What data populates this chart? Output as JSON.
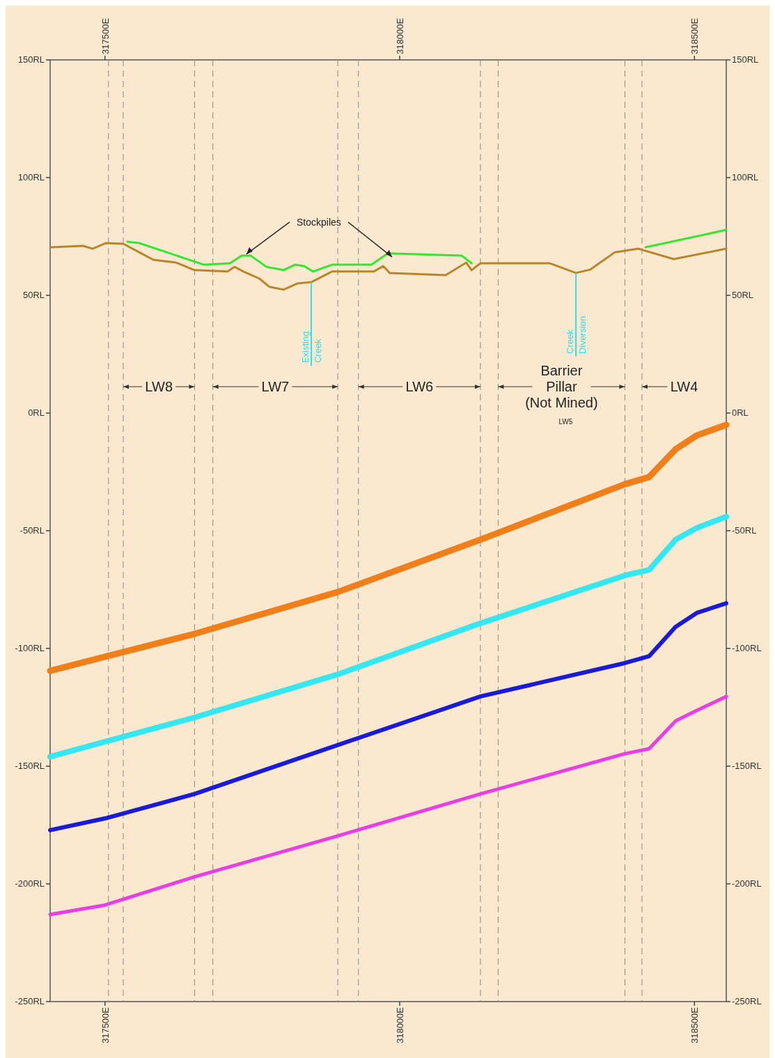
{
  "chart_data": {
    "type": "line",
    "xlim": [
      317407,
      318554
    ],
    "xticks": [
      {
        "value": 317500,
        "label": "317500E"
      },
      {
        "value": 318000,
        "label": "318000E"
      },
      {
        "value": 318500,
        "label": "318500E"
      }
    ],
    "x2lim": [
      317407,
      318554
    ],
    "x2ticks": [
      {
        "value": 317500,
        "label": "317500E"
      },
      {
        "value": 318000,
        "label": "318000E"
      },
      {
        "value": 318500,
        "label": "318500E"
      }
    ],
    "ylim": [
      -250,
      150
    ],
    "yticks": [
      {
        "value": 150,
        "label": "150RL"
      },
      {
        "value": 100,
        "label": "100RL"
      },
      {
        "value": 50,
        "label": "50RL"
      },
      {
        "value": 0,
        "label": "0RL"
      },
      {
        "value": -50,
        "label": "-50RL"
      },
      {
        "value": -100,
        "label": "-100RL"
      },
      {
        "value": -150,
        "label": "-150RL"
      },
      {
        "value": -200,
        "label": "-200RL"
      },
      {
        "value": -250,
        "label": "-250RL"
      }
    ],
    "y2lim": [
      -250,
      150
    ],
    "y2ticks": [
      {
        "value": 150,
        "label": "150RL"
      },
      {
        "value": 100,
        "label": "100RL"
      },
      {
        "value": 50,
        "label": "50RL"
      },
      {
        "value": 0,
        "label": "0RL"
      },
      {
        "value": -50,
        "label": "-50RL"
      },
      {
        "value": -100,
        "label": "-100RL"
      },
      {
        "value": -150,
        "label": "-150RL"
      },
      {
        "value": -200,
        "label": "-200RL"
      },
      {
        "value": -250,
        "label": "-250RL"
      }
    ],
    "series": [
      {
        "color": "#33e62e",
        "x": [
          317538,
          317558,
          317668,
          317712,
          317732,
          317747,
          317774,
          317803,
          317822,
          317838,
          317853,
          317885,
          317952,
          317980,
          318105,
          318122
        ],
        "values": [
          72.8,
          72.2,
          63.0,
          63.6,
          66.9,
          66.9,
          62.1,
          60.7,
          63.0,
          62.4,
          60.1,
          63.0,
          63.0,
          67.8,
          66.9,
          63.6
        ]
      },
      {
        "color": "#33e62e",
        "x": [
          318417,
          318554
        ],
        "values": [
          70.4,
          77.8
        ]
      },
      {
        "color": "#b8862a",
        "x": [
          317408,
          317463,
          317479,
          317502,
          317531,
          317558,
          317582,
          317621,
          317652,
          317708,
          317720,
          317735,
          317762,
          317779,
          317803,
          317826,
          317850,
          317885,
          317956,
          317972,
          317983,
          318078,
          318113,
          318122,
          318137,
          318255,
          318299,
          318323,
          318365,
          318405,
          318417,
          318465,
          318554
        ],
        "values": [
          70.4,
          71.0,
          69.8,
          72.2,
          71.9,
          68.3,
          65.1,
          63.9,
          60.7,
          60.1,
          62.1,
          60.1,
          57.1,
          53.6,
          52.4,
          55.0,
          55.6,
          60.1,
          60.1,
          62.4,
          59.5,
          58.6,
          63.9,
          60.7,
          63.6,
          63.6,
          59.5,
          60.9,
          68.3,
          69.8,
          68.9,
          65.4,
          69.8
        ]
      },
      {
        "color": "#f07f1a",
        "x": [
          317407,
          317500,
          317652,
          317895,
          318137,
          318382,
          318423,
          318468,
          318504,
          318554
        ],
        "values": [
          -109.5,
          -103.5,
          -93.8,
          -76,
          -53.8,
          -30.2,
          -27.2,
          -15.4,
          -9.5,
          -5
        ]
      },
      {
        "color": "#33e8f0",
        "x": [
          317407,
          317500,
          317652,
          317895,
          318137,
          318382,
          318423,
          318468,
          318504,
          318554
        ],
        "values": [
          -146,
          -139.6,
          -129.3,
          -111,
          -89.3,
          -69,
          -66.6,
          -53.8,
          -48.8,
          -44
        ]
      },
      {
        "color": "#1a1adb",
        "x": [
          317407,
          317500,
          317652,
          317895,
          318137,
          318382,
          318423,
          318468,
          318504,
          318554
        ],
        "values": [
          -177.2,
          -172.2,
          -161.8,
          -141,
          -120.4,
          -106.2,
          -103.3,
          -90.8,
          -84.9,
          -80.8
        ]
      },
      {
        "color": "#e83ee8",
        "x": [
          317407,
          317500,
          317652,
          317895,
          318137,
          318382,
          318423,
          318468,
          318504,
          318554
        ],
        "values": [
          -213,
          -209,
          -197,
          -179.6,
          -161.8,
          -144.7,
          -142.6,
          -130.8,
          -126.3,
          -120.4
        ]
      }
    ],
    "ref_lines": [
      {
        "axis": "x",
        "value": 317506,
        "color": "#8a8a8a",
        "line_style": "dashed"
      },
      {
        "axis": "x",
        "value": 317531,
        "color": "#8a8a8a",
        "line_style": "dashed"
      },
      {
        "axis": "x",
        "value": 317652,
        "color": "#8a8a8a",
        "line_style": "dashed"
      },
      {
        "axis": "x",
        "value": 317683,
        "color": "#8a8a8a",
        "line_style": "dashed"
      },
      {
        "axis": "x",
        "value": 317895,
        "color": "#8a8a8a",
        "line_style": "dashed"
      },
      {
        "axis": "x",
        "value": 317930,
        "color": "#8a8a8a",
        "line_style": "dashed"
      },
      {
        "axis": "x",
        "value": 318137,
        "color": "#8a8a8a",
        "line_style": "dashed"
      },
      {
        "axis": "x",
        "value": 318167,
        "color": "#8a8a8a",
        "line_style": "dashed"
      },
      {
        "axis": "x",
        "value": 318382,
        "color": "#8a8a8a",
        "line_style": "dashed"
      },
      {
        "axis": "x",
        "value": 318411,
        "color": "#8a8a8a",
        "line_style": "dashed"
      }
    ],
    "annotations": [
      {
        "text": "Stockpiles",
        "x": 317740,
        "y": 66.9
      },
      "LW5",
      {
        "text": "LW8",
        "x": 317531,
        "y": 11.2
      },
      {
        "text": "LW7",
        "x": 317683,
        "y": 11.2
      },
      {
        "text": "LW6",
        "x": 317930,
        "y": 11.2
      },
      {
        "text": "Barrier\nPillar\n(Not Mined)",
        "x": 318167,
        "y": 11.2
      },
      {
        "text": "LW4",
        "x": 318411,
        "y": 11.2
      },
      {
        "text": "Existing Creek",
        "x": 317850,
        "y": 55.6
      },
      {
        "text": "Creek Diversion",
        "x": 318299,
        "y": 59.5
      }
    ]
  }
}
